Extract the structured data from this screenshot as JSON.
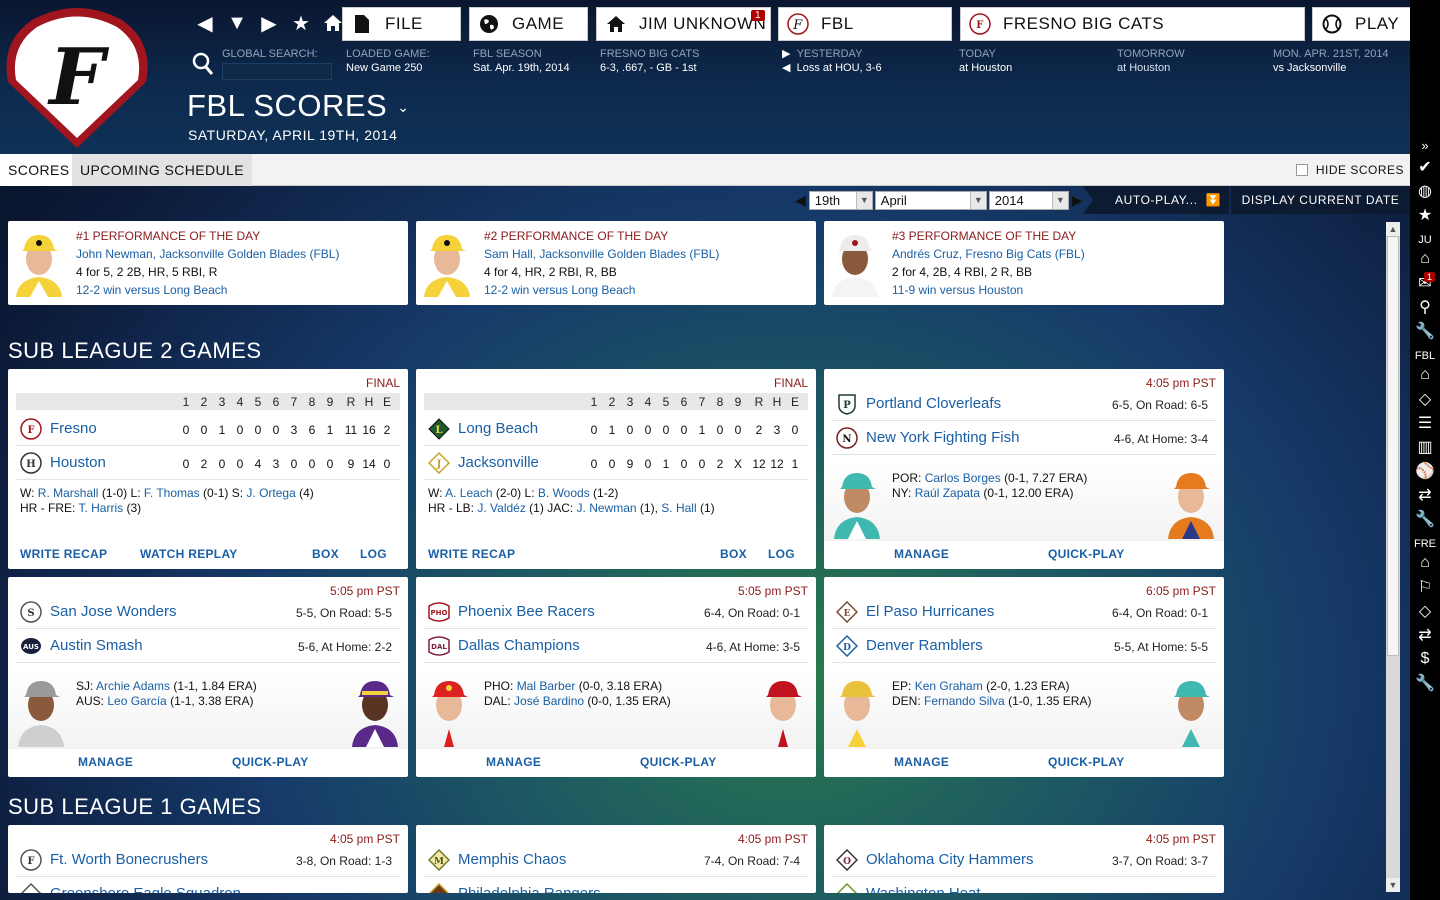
{
  "header": {
    "buttons": {
      "file": "FILE",
      "game": "GAME",
      "manager": "JIM UNKNOWN",
      "manager_badge": "1",
      "league": "FBL",
      "team": "FRESNO BIG CATS",
      "play": "PLAY"
    },
    "global_search_label": "GLOBAL SEARCH:",
    "loaded_game": {
      "label": "LOADED GAME:",
      "value": "New Game 250"
    },
    "season": {
      "label": "FBL SEASON",
      "value": "Sat. Apr. 19th, 2014"
    },
    "team_record": {
      "label": "FRESNO BIG CATS",
      "value": "6-3, .667, - GB - 1st"
    },
    "yesterday": {
      "label": "YESTERDAY",
      "value": "Loss at HOU, 3-6"
    },
    "today": {
      "label": "TODAY",
      "value": "at Houston"
    },
    "tomorrow": {
      "label": "TOMORROW",
      "value": "at Houston"
    },
    "next": {
      "label": "MON. APR. 21ST, 2014",
      "value": "vs Jacksonville"
    },
    "page_title": "FBL SCORES",
    "page_date": "SATURDAY, APRIL 19TH, 2014"
  },
  "tabs": {
    "scores": "SCORES",
    "upcoming": "UPCOMING SCHEDULE",
    "hide_scores": "HIDE SCORES"
  },
  "date_controls": {
    "day": "19th",
    "month": "April",
    "year": "2014",
    "auto_play": "AUTO-PLAY...",
    "display_current": "DISPLAY CURRENT DATE"
  },
  "performances": [
    {
      "title": "#1 PERFORMANCE OF THE DAY",
      "player": "John Newman, Jacksonville Golden Blades (FBL)",
      "stats": "4 for 5, 2 2B, HR, 5 RBI, R",
      "result": "12-2 win versus Long Beach"
    },
    {
      "title": "#2 PERFORMANCE OF THE DAY",
      "player": "Sam Hall, Jacksonville Golden Blades (FBL)",
      "stats": "4 for 4, HR, 2 RBI, R, BB",
      "result": "12-2 win versus Long Beach"
    },
    {
      "title": "#3 PERFORMANCE OF THE DAY",
      "player": "Andrés Cruz, Fresno Big Cats (FBL)",
      "stats": "2 for 4, 2B, 4 RBI, 2 R, BB",
      "result": "11-9 win versus Houston"
    }
  ],
  "sections": {
    "sub2": "SUB LEAGUE 2 GAMES",
    "sub1": "SUB LEAGUE 1 GAMES"
  },
  "linescore_header": [
    "1",
    "2",
    "3",
    "4",
    "5",
    "6",
    "7",
    "8",
    "9",
    "R",
    "H",
    "E"
  ],
  "final_games": [
    {
      "status": "FINAL",
      "teams": [
        {
          "name": "Fresno",
          "line": [
            "0",
            "0",
            "1",
            "0",
            "0",
            "0",
            "3",
            "6",
            "1",
            "11",
            "16",
            "2"
          ]
        },
        {
          "name": "Houston",
          "line": [
            "0",
            "2",
            "0",
            "0",
            "4",
            "3",
            "0",
            "0",
            "0",
            "9",
            "14",
            "0"
          ]
        }
      ],
      "summary": {
        "w_label": "W:",
        "w": "R. Marshall",
        "w_rec": "(1-0)",
        "l_label": "L:",
        "l": "F. Thomas",
        "l_rec": "(0-1)",
        "s_label": "S:",
        "s": "J. Ortega",
        "s_rec": "(4)",
        "hr_label": "HR - FRE:",
        "hr1": "T. Harris",
        "hr1_ct": "(3)"
      },
      "actions": {
        "recap": "WRITE RECAP",
        "replay": "WATCH REPLAY",
        "box": "BOX",
        "log": "LOG"
      }
    },
    {
      "status": "FINAL",
      "teams": [
        {
          "name": "Long Beach",
          "line": [
            "0",
            "1",
            "0",
            "0",
            "0",
            "0",
            "1",
            "0",
            "0",
            "2",
            "3",
            "0"
          ]
        },
        {
          "name": "Jacksonville",
          "line": [
            "0",
            "0",
            "9",
            "0",
            "1",
            "0",
            "0",
            "2",
            "X",
            "12",
            "12",
            "1"
          ]
        }
      ],
      "summary": {
        "w_label": "W:",
        "w": "A. Leach",
        "w_rec": "(2-0)",
        "l_label": "L:",
        "l": "B. Woods",
        "l_rec": "(1-2)",
        "hr_label": "HR - LB:",
        "hr1": "J. Valdéz",
        "hr1_ct": "(1)",
        "hr_label2": "JAC:",
        "hr2": "J. Newman",
        "hr2_ct": "(1),",
        "hr3": "S. Hall",
        "hr3_ct": "(1)"
      },
      "actions": {
        "recap": "WRITE RECAP",
        "box": "BOX",
        "log": "LOG"
      }
    }
  ],
  "upcoming_games": [
    {
      "time": "4:05 pm PST",
      "away": {
        "name": "Portland Cloverleafs",
        "rec": "6-5, On Road: 6-5"
      },
      "home": {
        "name": "New York Fighting Fish",
        "rec": "4-6, At Home: 3-4"
      },
      "sp1_label": "POR:",
      "sp1": "Carlos Borges",
      "sp1_stat": "(0-1, 7.27 ERA)",
      "sp2_label": "NY:",
      "sp2": "Raúl Zapata",
      "sp2_stat": "(0-1, 12.00 ERA)",
      "manage": "MANAGE",
      "quick": "QUICK-PLAY"
    },
    {
      "time": "5:05 pm PST",
      "away": {
        "name": "San Jose Wonders",
        "rec": "5-5, On Road: 5-5"
      },
      "home": {
        "name": "Austin Smash",
        "rec": "5-6, At Home: 2-2"
      },
      "sp1_label": "SJ:",
      "sp1": "Archie Adams",
      "sp1_stat": "(1-1, 1.84 ERA)",
      "sp2_label": "AUS:",
      "sp2": "Leo García",
      "sp2_stat": "(1-1, 3.38 ERA)",
      "manage": "MANAGE",
      "quick": "QUICK-PLAY"
    },
    {
      "time": "5:05 pm PST",
      "away": {
        "name": "Phoenix Bee Racers",
        "rec": "6-4, On Road: 0-1"
      },
      "home": {
        "name": "Dallas Champions",
        "rec": "4-6, At Home: 3-5"
      },
      "sp1_label": "PHO:",
      "sp1": "Mal Barber",
      "sp1_stat": "(0-0, 3.18 ERA)",
      "sp2_label": "DAL:",
      "sp2": "José Bardino",
      "sp2_stat": "(0-0, 1.35 ERA)",
      "manage": "MANAGE",
      "quick": "QUICK-PLAY"
    },
    {
      "time": "6:05 pm PST",
      "away": {
        "name": "El Paso Hurricanes",
        "rec": "6-4, On Road: 0-1"
      },
      "home": {
        "name": "Denver Ramblers",
        "rec": "5-5, At Home: 5-5"
      },
      "sp1_label": "EP:",
      "sp1": "Ken Graham",
      "sp1_stat": "(2-0, 1.23 ERA)",
      "sp2_label": "DEN:",
      "sp2": "Fernando Silva",
      "sp2_stat": "(1-0, 1.35 ERA)",
      "manage": "MANAGE",
      "quick": "QUICK-PLAY"
    }
  ],
  "sub1_games": [
    {
      "time": "4:05 pm PST",
      "away": {
        "name": "Ft. Worth Bonecrushers",
        "rec": "3-8, On Road: 1-3"
      },
      "home": {
        "name": "Greensboro Eagle Squadron"
      }
    },
    {
      "time": "4:05 pm PST",
      "away": {
        "name": "Memphis Chaos",
        "rec": "7-4, On Road: 7-4"
      },
      "home": {
        "name": "Philadelphia Rangers"
      }
    },
    {
      "time": "4:05 pm PST",
      "away": {
        "name": "Oklahoma City Hammers",
        "rec": "3-7, On Road: 3-7"
      },
      "home": {
        "name": "Washington Heat"
      }
    }
  ],
  "sidebar": {
    "ju": "JU",
    "ju_badge": "1",
    "fbl": "FBL",
    "fre": "FRE"
  },
  "colors": {
    "accent_red": "#8b1a1a",
    "link_blue": "#1a5fa5",
    "brand_red": "#a0151e"
  }
}
